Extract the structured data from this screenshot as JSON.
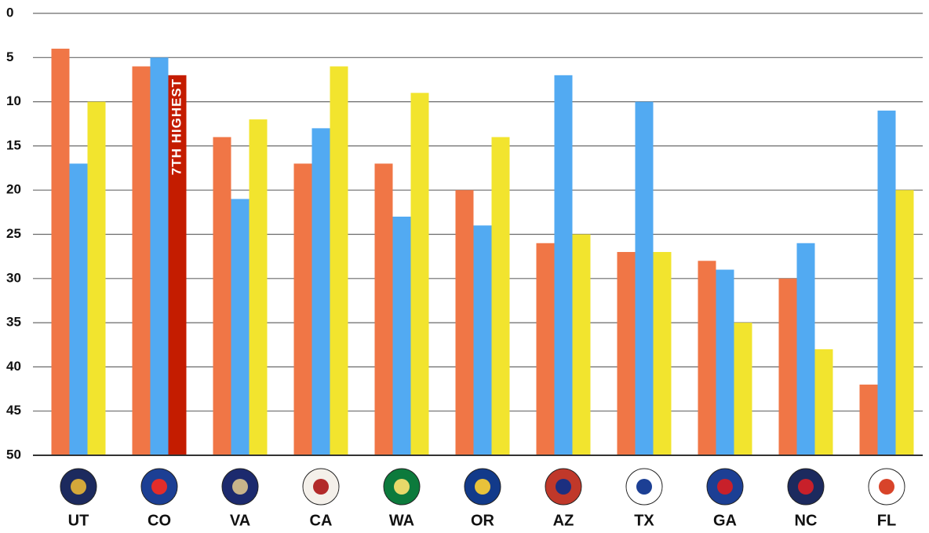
{
  "chart_data": {
    "type": "bar",
    "categories": [
      "UT",
      "CO",
      "VA",
      "CA",
      "WA",
      "OR",
      "AZ",
      "TX",
      "GA",
      "NC",
      "FL"
    ],
    "series": [
      {
        "color": "#f07646",
        "values": [
          4,
          6,
          14,
          17,
          17,
          20,
          26,
          27,
          28,
          30,
          42
        ]
      },
      {
        "color": "#52aaf2",
        "values": [
          17,
          5,
          21,
          13,
          23,
          24,
          7,
          10,
          29,
          26,
          11
        ]
      },
      {
        "color": "#f2e42e",
        "values": [
          10,
          7,
          12,
          6,
          9,
          14,
          25,
          27,
          35,
          38,
          20
        ]
      }
    ],
    "annotations": [
      {
        "text": "7TH HIGHEST",
        "category": 1,
        "series": 2,
        "color": "#c41c00"
      }
    ],
    "ylim": [
      0,
      50
    ],
    "yticks": [
      0,
      5,
      10,
      15,
      20,
      25,
      30,
      35,
      40,
      45,
      50
    ],
    "y_inverted": true,
    "grid": true
  }
}
